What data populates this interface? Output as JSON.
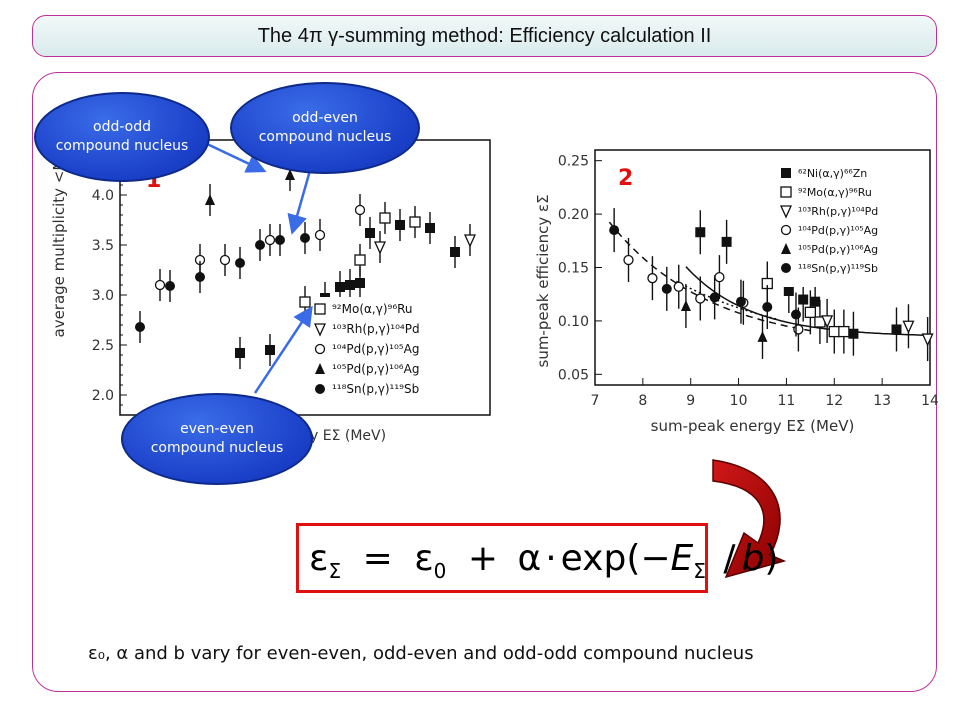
{
  "slide": {
    "title": "The 4π γ-summing method: Efficiency calculation II",
    "caption": "ε₀, α and b vary for even-even, odd-even and odd-odd compound nucleus",
    "formula": "εΣ = ε0 + α·exp(−EΣ / b)"
  },
  "bubbles": {
    "odd_odd": "odd-odd\ncompound nucleus",
    "odd_even": "odd-even\ncompound nucleus",
    "even_even": "even-even\ncompound nucleus"
  },
  "colors": {
    "accent_border": "#c0309a",
    "bubble_blue": "#1a3fc8",
    "formula_red": "#e01010",
    "arrow_red": "#b80000",
    "panel_number_red": "#e01010"
  },
  "chart_data": [
    {
      "type": "scatter",
      "panel_label": "1",
      "ylabel": "average multiplicity  <M>",
      "xlabel_visible": "y  EΣ   (MeV)",
      "ylim": [
        1.8,
        4.55
      ],
      "xlim": [
        6.7,
        14.1
      ],
      "yticks": [
        "2.0",
        "2.5",
        "3.0",
        "3.5",
        "4.0"
      ],
      "ytick_values": [
        2.0,
        2.5,
        3.0,
        3.5,
        4.0
      ],
      "legend": [
        "⁹²Mo(α,γ)⁹⁶Ru",
        "¹⁰³Rh(p,γ)¹⁰⁴Pd",
        "¹⁰⁴Pd(p,γ)¹⁰⁵Ag",
        "¹⁰⁵Pd(p,γ)¹⁰⁶Ag",
        "¹¹⁸Sn(p,γ)¹¹⁹Sb"
      ],
      "series": [
        {
          "name": "⁹²Mo(α,γ)⁹⁶Ru",
          "marker": "square-open",
          "points": [
            [
              10.4,
              2.93
            ],
            [
              11.5,
              3.35
            ],
            [
              12.0,
              3.77
            ],
            [
              12.6,
              3.73
            ]
          ]
        },
        {
          "name": "¹⁰³Rh(p,γ)¹⁰⁴Pd",
          "marker": "triangle-down-open",
          "points": [
            [
              11.9,
              3.48
            ],
            [
              13.7,
              3.55
            ]
          ]
        },
        {
          "name": "¹⁰⁴Pd(p,γ)¹⁰⁵Ag",
          "marker": "circle-open",
          "points": [
            [
              7.5,
              3.1
            ],
            [
              8.3,
              3.35
            ],
            [
              8.8,
              3.35
            ],
            [
              9.7,
              3.55
            ],
            [
              10.7,
              3.6
            ],
            [
              11.5,
              3.85
            ]
          ]
        },
        {
          "name": "¹⁰⁵Pd(p,γ)¹⁰⁶Ag",
          "marker": "triangle-up-filled",
          "points": [
            [
              8.5,
              3.95
            ],
            [
              10.1,
              4.2
            ]
          ]
        },
        {
          "name": "¹¹⁸Sn(p,γ)¹¹⁹Sb",
          "marker": "circle-filled",
          "points": [
            [
              7.1,
              2.68
            ],
            [
              7.7,
              3.09
            ],
            [
              8.3,
              3.18
            ],
            [
              9.1,
              3.32
            ],
            [
              9.5,
              3.5
            ],
            [
              9.9,
              3.55
            ],
            [
              10.4,
              3.57
            ]
          ]
        },
        {
          "name": "even-even (filled squares)",
          "marker": "square-filled",
          "points": [
            [
              9.1,
              2.42
            ],
            [
              9.7,
              2.45
            ],
            [
              10.8,
              2.97
            ],
            [
              11.1,
              3.08
            ],
            [
              11.3,
              3.1
            ],
            [
              11.5,
              3.12
            ],
            [
              11.7,
              3.62
            ],
            [
              12.3,
              3.7
            ],
            [
              12.9,
              3.67
            ],
            [
              13.4,
              3.43
            ]
          ]
        }
      ]
    },
    {
      "type": "scatter",
      "panel_label": "2",
      "xlabel": "sum-peak energy  EΣ  (MeV)",
      "ylabel": "sum-peak efficiency  εΣ",
      "xlim": [
        7,
        14
      ],
      "ylim": [
        0.04,
        0.26
      ],
      "xticks": [
        "7",
        "8",
        "9",
        "10",
        "11",
        "12",
        "13",
        "14"
      ],
      "xtick_values": [
        7,
        8,
        9,
        10,
        11,
        12,
        13,
        14
      ],
      "yticks": [
        "0.05",
        "0.10",
        "0.15",
        "0.20",
        "0.25"
      ],
      "ytick_values": [
        0.05,
        0.1,
        0.15,
        0.2,
        0.25
      ],
      "legend": [
        "⁶²Ni(α,γ)⁶⁶Zn",
        "⁹²Mo(α,γ)⁹⁶Ru",
        "¹⁰³Rh(p,γ)¹⁰⁴Pd",
        "¹⁰⁴Pd(p,γ)¹⁰⁵Ag",
        "¹⁰⁵Pd(p,γ)¹⁰⁶Ag",
        "¹¹⁸Sn(p,γ)¹¹⁹Sb"
      ],
      "series": [
        {
          "name": "⁶²Ni(α,γ)⁶⁶Zn",
          "marker": "square-filled",
          "points": [
            [
              9.2,
              0.183
            ],
            [
              9.75,
              0.174
            ],
            [
              11.05,
              0.128
            ],
            [
              11.35,
              0.12
            ],
            [
              11.6,
              0.118
            ],
            [
              12.4,
              0.088
            ],
            [
              13.3,
              0.092
            ]
          ]
        },
        {
          "name": "⁹²Mo(α,γ)⁹⁶Ru",
          "marker": "square-open",
          "points": [
            [
              10.6,
              0.135
            ],
            [
              11.5,
              0.108
            ],
            [
              11.7,
              0.099
            ],
            [
              12.0,
              0.09
            ],
            [
              12.2,
              0.09
            ]
          ]
        },
        {
          "name": "¹⁰³Rh(p,γ)¹⁰⁴Pd",
          "marker": "triangle-down-open",
          "points": [
            [
              11.85,
              0.1
            ],
            [
              13.55,
              0.095
            ],
            [
              13.95,
              0.083
            ]
          ]
        },
        {
          "name": "¹⁰⁴Pd(p,γ)¹⁰⁵Ag",
          "marker": "circle-open",
          "points": [
            [
              7.7,
              0.157
            ],
            [
              8.2,
              0.14
            ],
            [
              8.75,
              0.132
            ],
            [
              9.2,
              0.121
            ],
            [
              9.6,
              0.141
            ],
            [
              10.1,
              0.117
            ],
            [
              11.25,
              0.092
            ]
          ]
        },
        {
          "name": "¹⁰⁵Pd(p,γ)¹⁰⁶Ag",
          "marker": "triangle-up-filled",
          "points": [
            [
              8.9,
              0.114
            ],
            [
              10.5,
              0.085
            ]
          ]
        },
        {
          "name": "¹¹⁸Sn(p,γ)¹¹⁹Sb",
          "marker": "circle-filled",
          "points": [
            [
              7.4,
              0.185
            ],
            [
              8.5,
              0.13
            ],
            [
              9.5,
              0.122
            ],
            [
              10.05,
              0.118
            ],
            [
              10.6,
              0.113
            ],
            [
              11.2,
              0.106
            ]
          ]
        }
      ],
      "fits": [
        {
          "style": "solid",
          "eps0": 0.085,
          "alpha": 48,
          "b": 1.35,
          "xrange": [
            8.9,
            14
          ]
        },
        {
          "style": "dashed",
          "eps0": 0.075,
          "alpha": 3.8,
          "b": 2.1,
          "xrange": [
            7.3,
            11.5
          ]
        },
        {
          "style": "dotted",
          "eps0": 0.07,
          "alpha": 1.5,
          "b": 2.8,
          "xrange": [
            8.7,
            10.8
          ]
        }
      ]
    }
  ]
}
